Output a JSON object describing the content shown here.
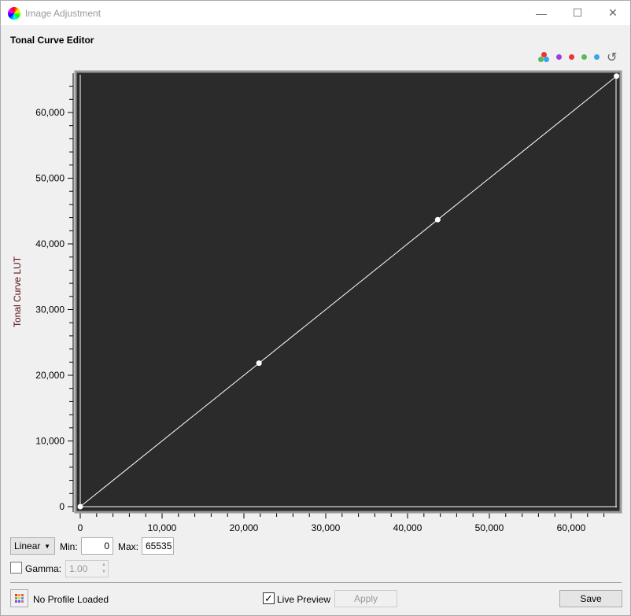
{
  "window": {
    "title": "Image Adjustment",
    "minimize": "—",
    "maximize": "☐",
    "close": "✕"
  },
  "heading": "Tonal Curve Editor",
  "toolbar": {
    "icons": [
      "all-channels-icon",
      "purple-channel-icon",
      "red-channel-icon",
      "green-channel-icon",
      "blue-channel-icon",
      "reset-icon"
    ],
    "colors": {
      "purple": "#9b3fdc",
      "red": "#e8343c",
      "green": "#5cb85c",
      "blue": "#3aa4e8"
    }
  },
  "chart_data": {
    "type": "line",
    "ylabel": "Tonal Curve LUT",
    "xlabel": "",
    "xlim": [
      0,
      65535
    ],
    "ylim": [
      0,
      65535
    ],
    "xticks": [
      "0",
      "10,000",
      "20,000",
      "30,000",
      "40,000",
      "50,000",
      "60,000"
    ],
    "yticks": [
      "0",
      "10,000",
      "20,000",
      "30,000",
      "40,000",
      "50,000",
      "60,000"
    ],
    "background": "#2b2b2b",
    "line_color": "#ffffff",
    "control_points": [
      [
        0,
        0
      ],
      [
        21845,
        21845
      ],
      [
        43690,
        43690
      ],
      [
        65535,
        65535
      ]
    ]
  },
  "controls": {
    "mode": "Linear",
    "min_label": "Min:",
    "min_value": "0",
    "max_label": "Max:",
    "max_value": "65535",
    "gamma_label": "Gamma:",
    "gamma_value": "1.00",
    "gamma_checked": false
  },
  "footer": {
    "profile": "No Profile Loaded",
    "live_preview": "Live Preview",
    "live_preview_checked": true,
    "check": "✓",
    "apply": "Apply",
    "save": "Save"
  }
}
